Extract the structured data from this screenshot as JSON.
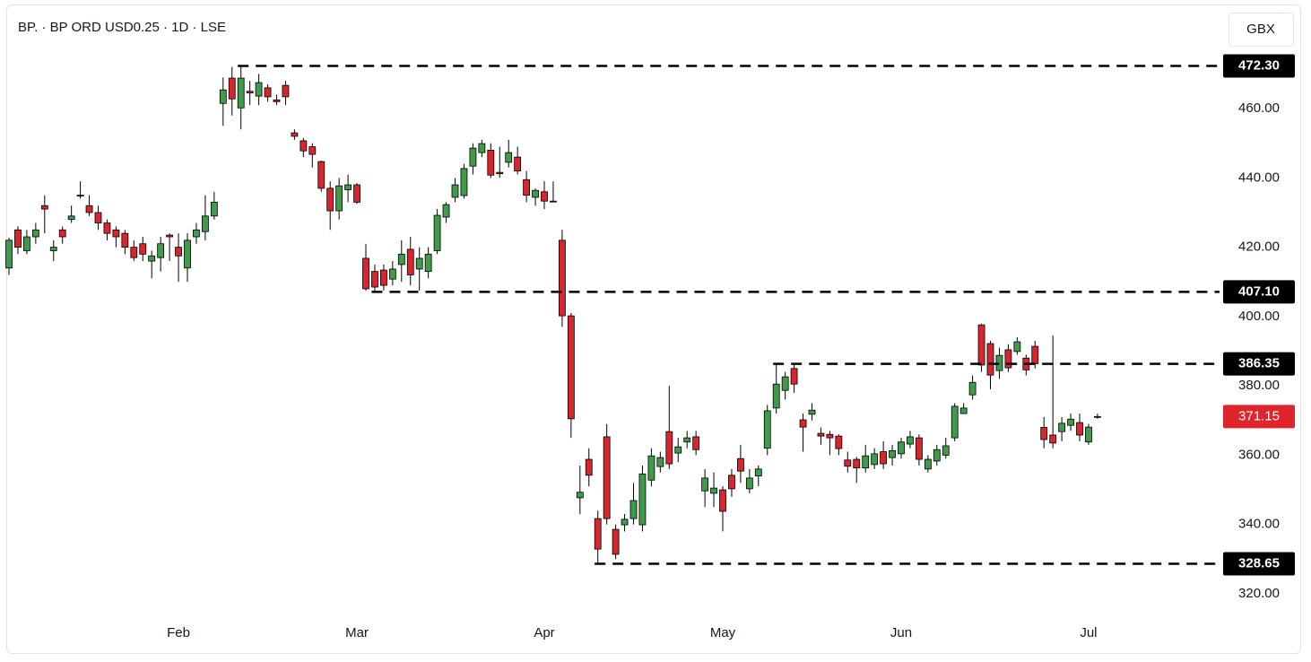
{
  "chart_data": {
    "type": "candlestick",
    "title": "BP. · BP ORD USD0.25 · 1D · LSE",
    "currency": "GBX",
    "up_color": "#3f9a4a",
    "down_color": "#d8262e",
    "categories": [
      null,
      null,
      null,
      null,
      null,
      null,
      null,
      null,
      null,
      null,
      null,
      null,
      null,
      null,
      null,
      null,
      null,
      null,
      null,
      "Feb",
      null,
      null,
      null,
      null,
      null,
      null,
      null,
      null,
      null,
      null,
      null,
      null,
      null,
      null,
      null,
      null,
      null,
      null,
      null,
      "Mar",
      null,
      null,
      null,
      null,
      null,
      null,
      null,
      null,
      null,
      null,
      null,
      null,
      null,
      null,
      null,
      null,
      null,
      null,
      null,
      null,
      "Apr",
      null,
      null,
      null,
      null,
      null,
      null,
      null,
      null,
      null,
      null,
      null,
      null,
      null,
      null,
      null,
      null,
      null,
      null,
      null,
      "May",
      null,
      null,
      null,
      null,
      null,
      null,
      null,
      null,
      null,
      null,
      null,
      null,
      null,
      null,
      null,
      null,
      null,
      null,
      null,
      "Jun",
      null,
      null,
      null,
      null,
      null,
      null,
      null,
      null,
      null,
      null,
      null,
      null,
      null,
      null,
      null,
      null,
      null,
      null,
      null,
      null,
      "Jul",
      null
    ],
    "open": [
      414,
      425,
      419,
      423,
      432,
      419,
      425,
      428,
      435,
      432,
      430,
      427,
      425,
      424,
      420,
      421,
      416,
      417,
      423.5,
      420,
      414,
      423,
      424.5,
      429,
      461.5,
      468.8,
      460.2,
      465,
      463.6,
      466,
      462.5,
      466.7,
      453,
      450.7,
      449,
      444.7,
      437,
      430.5,
      436.6,
      438,
      416.8,
      413,
      413.4,
      410.8,
      415,
      419.4,
      413.7,
      413,
      419,
      428.7,
      434.4,
      434.9,
      443.4,
      447.3,
      448,
      441.6,
      444.5,
      446,
      439.5,
      434.4,
      436,
      433.3,
      422,
      400.2,
      347.7,
      358.8,
      341.7,
      365.3,
      338.6,
      339.9,
      341.7,
      339.9,
      352.8,
      356.7,
      366.8,
      360.6,
      363.8,
      365.3,
      349.7,
      349,
      350,
      354.2,
      359,
      350.3,
      354,
      362,
      373.6,
      378.7,
      385,
      370.2,
      371.8,
      366.3,
      366,
      365.5,
      358.6,
      358.8,
      356.3,
      357.3,
      361,
      359.3,
      360.4,
      363.2,
      365,
      356,
      358.3,
      360,
      365,
      372,
      377.4,
      397.6,
      392.2,
      384.4,
      390.4,
      389.9,
      388,
      391.4,
      368,
      365.8,
      366.8,
      368.6,
      369.4,
      363.8,
      371.15
    ],
    "high": [
      422.7,
      426,
      425,
      427,
      435,
      422,
      426,
      432,
      439,
      435,
      432,
      428,
      426,
      425,
      422,
      423,
      419,
      423,
      424,
      424,
      424,
      427,
      435,
      436,
      469,
      472,
      472.3,
      468,
      470,
      467,
      464,
      468,
      454,
      451.5,
      450,
      445,
      439,
      440,
      441,
      438.5,
      421,
      415,
      415,
      416,
      422,
      423,
      420,
      420,
      431,
      433,
      440,
      444,
      450,
      451,
      450,
      449,
      451,
      449,
      442,
      437,
      439,
      439,
      425,
      401,
      357,
      362,
      344,
      369,
      340,
      343,
      352,
      357,
      362,
      361,
      380,
      365,
      367,
      367,
      356,
      355,
      351,
      356,
      363,
      356,
      357,
      374.5,
      386.35,
      384,
      386,
      372,
      375,
      368,
      367,
      366,
      361,
      359.5,
      363,
      362,
      364,
      363,
      365,
      367,
      366,
      360,
      363,
      365,
      375,
      375,
      383,
      398,
      393,
      391,
      392,
      394,
      389,
      393,
      371,
      394.5,
      371,
      372,
      372,
      369,
      372
    ],
    "low": [
      412,
      418,
      418,
      421,
      424,
      416,
      421,
      427,
      434,
      429,
      425,
      422,
      420,
      418,
      416,
      416,
      411,
      413,
      416,
      410,
      410,
      421,
      422,
      428,
      455,
      458,
      454,
      461,
      461,
      462,
      461,
      461,
      451,
      446,
      443,
      436,
      425,
      428,
      433,
      432.5,
      407.5,
      407.1,
      407.5,
      409,
      410,
      409,
      407.5,
      411,
      418,
      427,
      433,
      434,
      441,
      446,
      440,
      440,
      443,
      441,
      433,
      432,
      431,
      433,
      397,
      365,
      343,
      351,
      328.65,
      340,
      330,
      338,
      340,
      338,
      351,
      355,
      356,
      358,
      362,
      360,
      345,
      345,
      338,
      348,
      352,
      349,
      351,
      360,
      372,
      376,
      378,
      361,
      370,
      363,
      360,
      360,
      355,
      352,
      355,
      356,
      356,
      357,
      359,
      362,
      357,
      355,
      357,
      359,
      364,
      372,
      376,
      384,
      379,
      382,
      384,
      389,
      383,
      385,
      362,
      362,
      364,
      367,
      364,
      363,
      370.5
    ],
    "close": [
      422,
      420,
      423,
      425,
      431,
      420,
      423,
      429,
      435,
      430,
      427,
      424,
      423,
      420,
      417,
      418,
      417.5,
      421,
      423,
      417.5,
      422,
      425,
      429,
      433,
      465.4,
      462.8,
      468.8,
      464.5,
      467.5,
      463.4,
      462,
      463.4,
      452,
      447.8,
      446.8,
      437,
      430.5,
      437.7,
      438,
      433,
      408,
      408.5,
      409,
      413.7,
      418,
      412,
      416.8,
      418,
      429.2,
      432.3,
      438,
      442.7,
      448.6,
      449.9,
      440.8,
      441.2,
      447.3,
      442,
      435,
      436.4,
      433.3,
      433.3,
      400.2,
      370.5,
      349.3,
      354.2,
      332.9,
      341.7,
      331.4,
      341.5,
      346.9,
      354.6,
      359.8,
      359.3,
      357.5,
      362.4,
      365,
      361.6,
      353.4,
      350.5,
      343.8,
      350.3,
      355.4,
      353.4,
      356,
      372.8,
      380.5,
      382.6,
      380.5,
      368.1,
      373,
      365.5,
      365,
      361.9,
      356.8,
      356.3,
      359.8,
      360.4,
      357.5,
      361.3,
      363.8,
      365.3,
      358.8,
      358.8,
      361.6,
      362.7,
      374.1,
      373.6,
      381,
      386,
      383.1,
      388.8,
      385.2,
      392.7,
      384.6,
      386.4,
      364.5,
      363.5,
      369.2,
      370.4,
      365.8,
      368.1,
      371.15
    ],
    "ylim": [
      313,
      489
    ],
    "yticks": [
      {
        "value": 320,
        "label": "320.00"
      },
      {
        "value": 340,
        "label": "340.00"
      },
      {
        "value": 360,
        "label": "360.00"
      },
      {
        "value": 380,
        "label": "380.00"
      },
      {
        "value": 400,
        "label": "400.00"
      },
      {
        "value": 420,
        "label": "420.00"
      },
      {
        "value": 440,
        "label": "440.00"
      },
      {
        "value": 460,
        "label": "460.00"
      }
    ],
    "levels": [
      {
        "value": 472.3,
        "label": "472.30"
      },
      {
        "value": 407.1,
        "label": "407.10"
      },
      {
        "value": 386.35,
        "label": "386.35"
      },
      {
        "value": 328.65,
        "label": "328.65"
      }
    ],
    "level_color": "#000000",
    "last_price": {
      "value": 371.15,
      "label": "371.15",
      "color": "#e0242c"
    }
  }
}
